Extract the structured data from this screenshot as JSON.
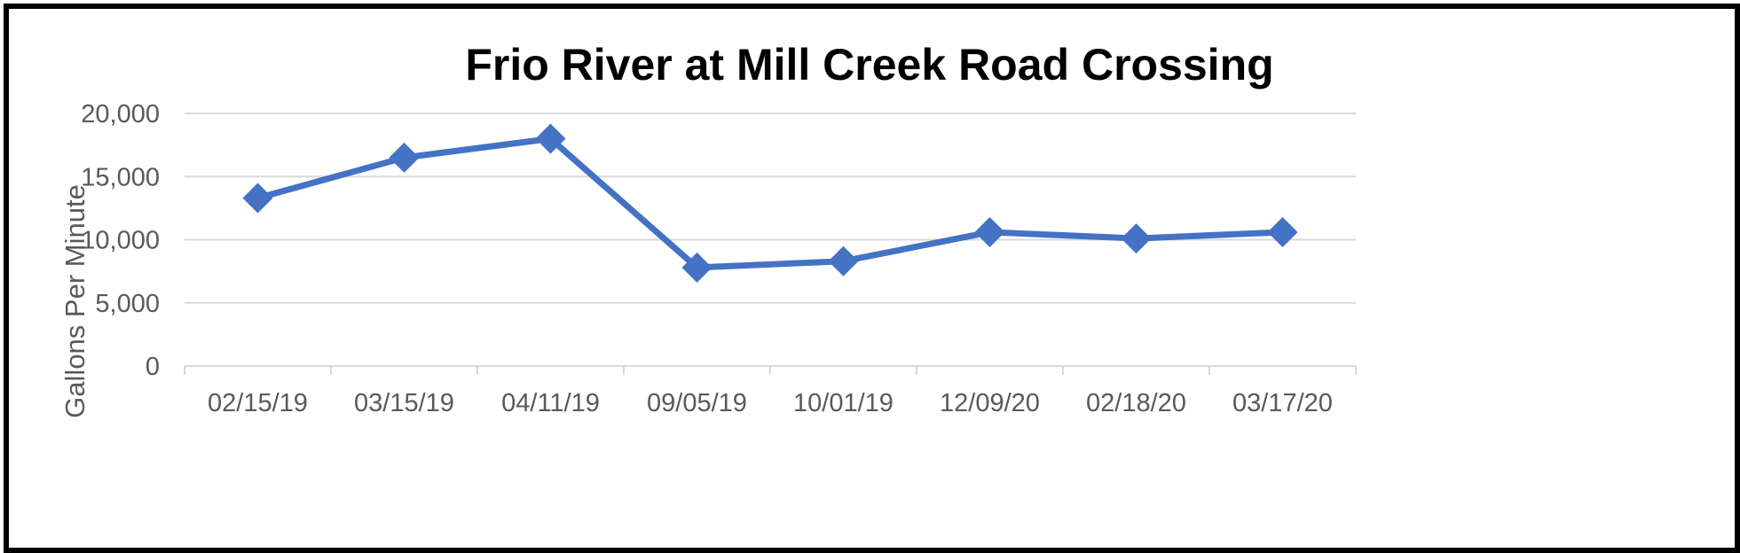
{
  "colors": {
    "series": "#4472C4",
    "grid": "#D9D9D9",
    "text": "#595959",
    "title": "#000000"
  },
  "chart_data": {
    "type": "line",
    "title": "Frio River at Mill Creek Road Crossing",
    "xlabel": "",
    "ylabel": "Gallons Per Minute",
    "ylim": [
      0,
      20000
    ],
    "yticks": [
      0,
      5000,
      10000,
      15000,
      20000
    ],
    "ytick_labels": [
      "0",
      "5,000",
      "10,000",
      "15,000",
      "20,000"
    ],
    "categories": [
      "02/15/19",
      "03/15/19",
      "04/11/19",
      "09/05/19",
      "10/01/19",
      "12/09/20",
      "02/18/20",
      "03/17/20"
    ],
    "values": [
      13300,
      16500,
      18000,
      7800,
      8300,
      10600,
      10100,
      10600
    ],
    "marker": "diamond",
    "grid": true,
    "legend": "none"
  }
}
